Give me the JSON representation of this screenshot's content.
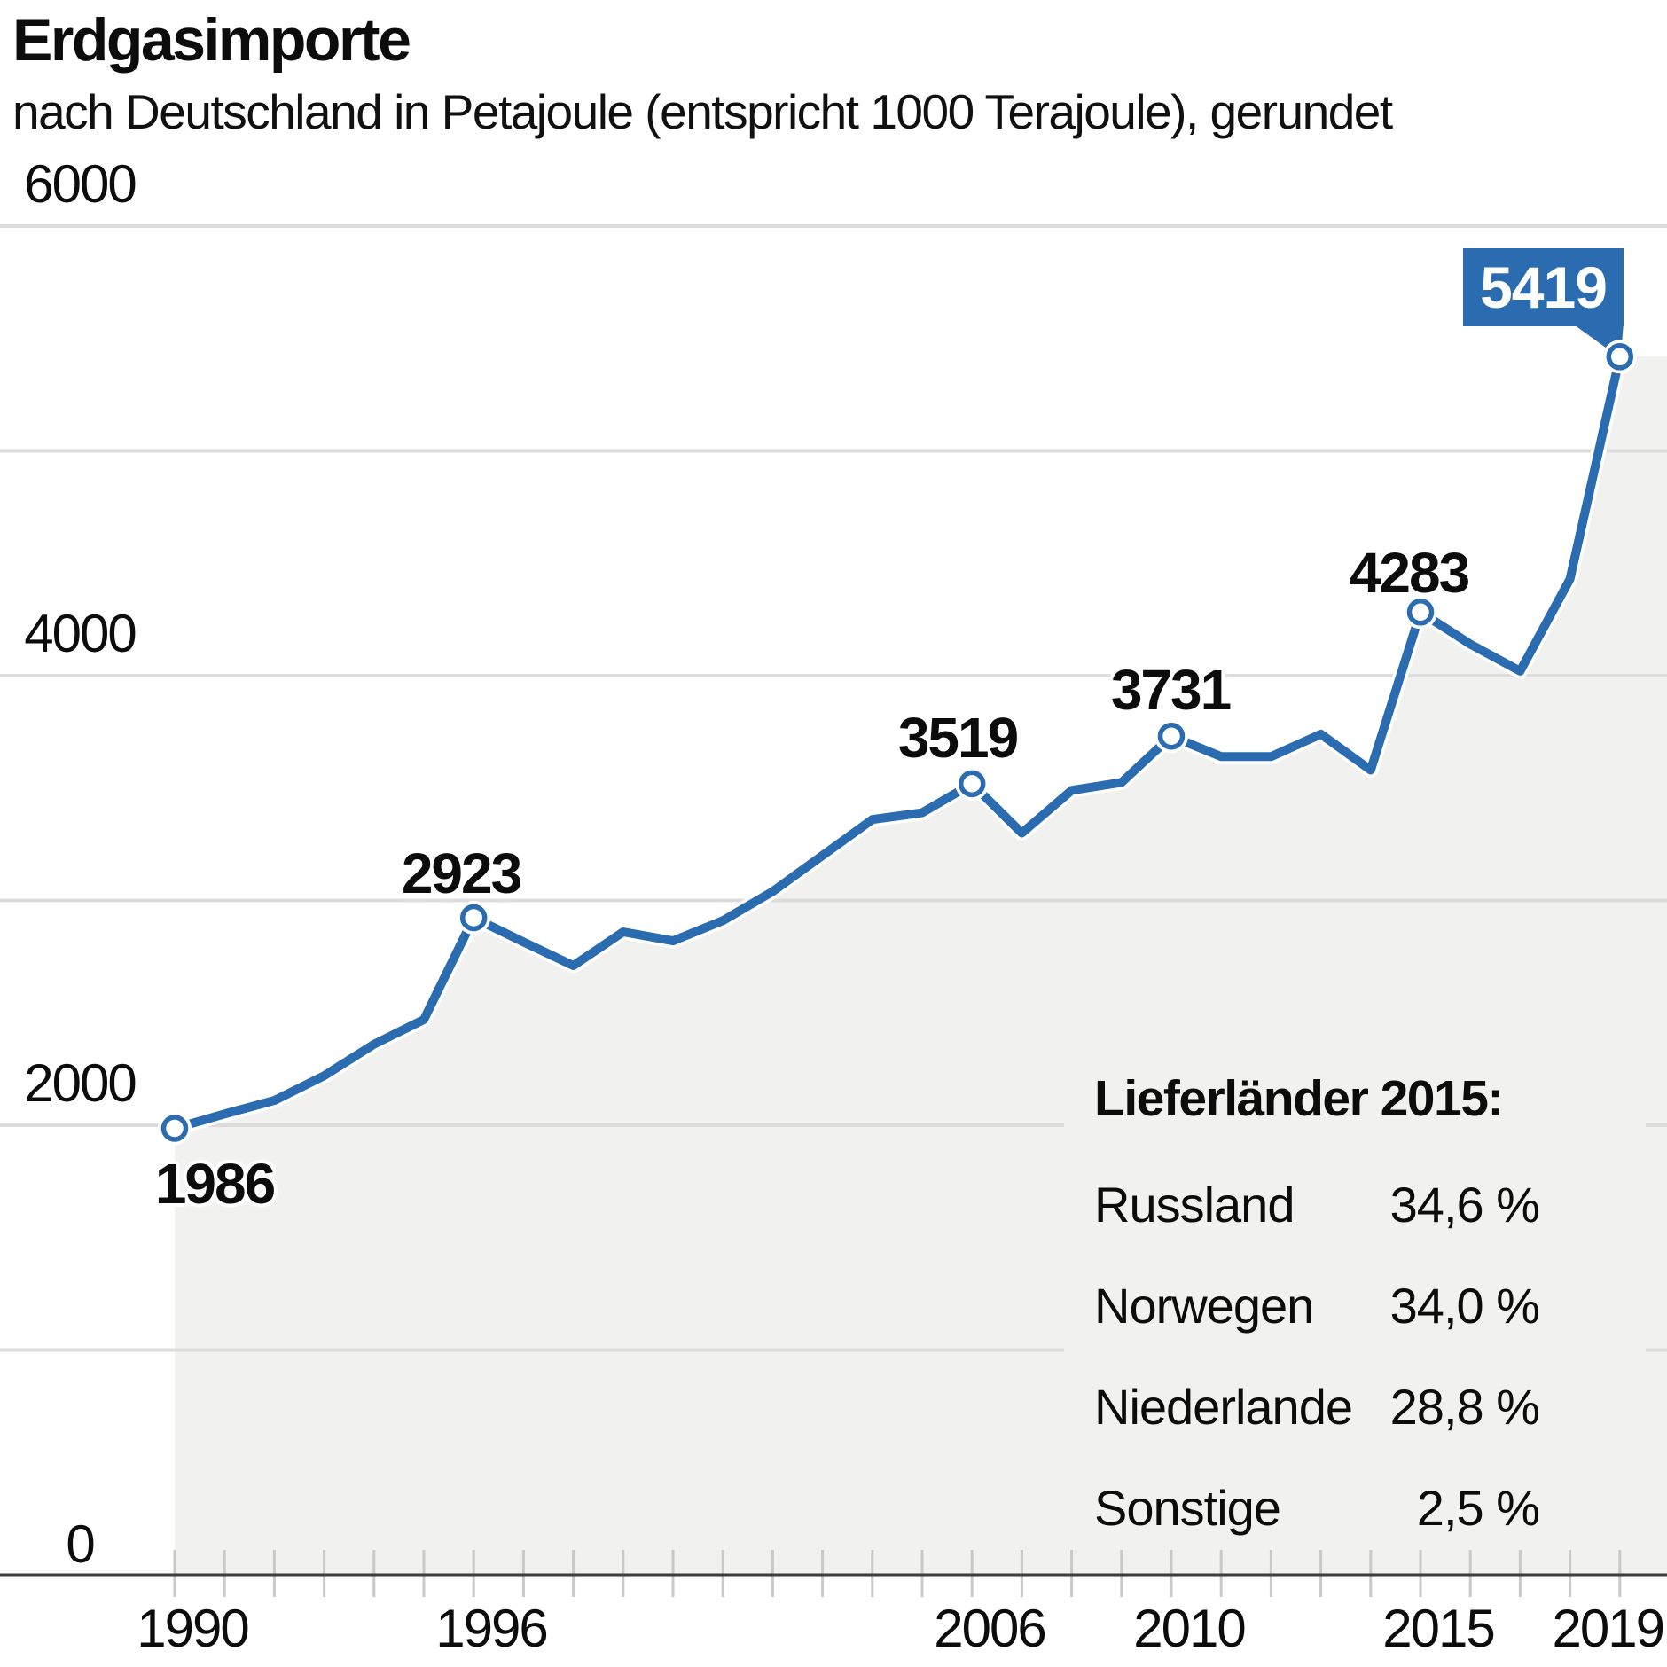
{
  "chart_data": {
    "type": "line",
    "title": "Erdgasimporte",
    "subtitle": "nach Deutschland in Petajoule (entspricht 1000 Terajoule), gerundet",
    "unit": "Petajoule",
    "x": [
      1990,
      1991,
      1992,
      1993,
      1994,
      1995,
      1996,
      1997,
      1998,
      1999,
      2000,
      2001,
      2002,
      2003,
      2004,
      2005,
      2006,
      2007,
      2008,
      2009,
      2010,
      2011,
      2012,
      2013,
      2014,
      2015,
      2016,
      2017,
      2018,
      2019
    ],
    "values": [
      1986,
      2050,
      2110,
      2220,
      2360,
      2470,
      2923,
      2815,
      2710,
      2860,
      2820,
      2910,
      3040,
      3200,
      3360,
      3390,
      3519,
      3300,
      3490,
      3525,
      3731,
      3640,
      3640,
      3740,
      3580,
      4283,
      4140,
      4020,
      4430,
      5419
    ],
    "ylim": [
      0,
      6000
    ],
    "y_gridline_step": 1000,
    "grid": "horizontal-only",
    "area_fill": true,
    "y_axis_labels": [
      {
        "value": 6000,
        "text": "6000"
      },
      {
        "value": 4000,
        "text": "4000"
      },
      {
        "value": 2000,
        "text": "2000"
      },
      {
        "value": 0,
        "text": "0"
      }
    ],
    "x_axis_labels": [
      {
        "year": 1990,
        "text": "1990"
      },
      {
        "year": 1996,
        "text": "1996"
      },
      {
        "year": 2006,
        "text": "2006"
      },
      {
        "year": 2010,
        "text": "2010"
      },
      {
        "year": 2015,
        "text": "2015"
      },
      {
        "year": 2019,
        "text": "2019"
      }
    ],
    "annotations": [
      {
        "year": 1990,
        "text": "1986",
        "style": "plain"
      },
      {
        "year": 1996,
        "text": "2923",
        "style": "plain"
      },
      {
        "year": 2006,
        "text": "3519",
        "style": "plain"
      },
      {
        "year": 2010,
        "text": "3731",
        "style": "plain"
      },
      {
        "year": 2015,
        "text": "4283",
        "style": "plain"
      },
      {
        "year": 2019,
        "text": "5419",
        "style": "callout"
      }
    ],
    "colors": {
      "line": "#2a6caf",
      "area": "#f1f1ef",
      "gridline": "#dcdcdc",
      "axis": "#3d3d3d",
      "tick": "#c9c9c9",
      "callout_bg": "#2a6caf",
      "callout_text": "#ffffff"
    }
  },
  "legend": {
    "title": "Lieferländer 2015:",
    "rows": [
      {
        "name": "Russland",
        "value": "34,6 %"
      },
      {
        "name": "Norwegen",
        "value": "34,0 %"
      },
      {
        "name": "Niederlande",
        "value": "28,8 %"
      },
      {
        "name": "Sonstige",
        "value": "2,5 %"
      }
    ]
  }
}
